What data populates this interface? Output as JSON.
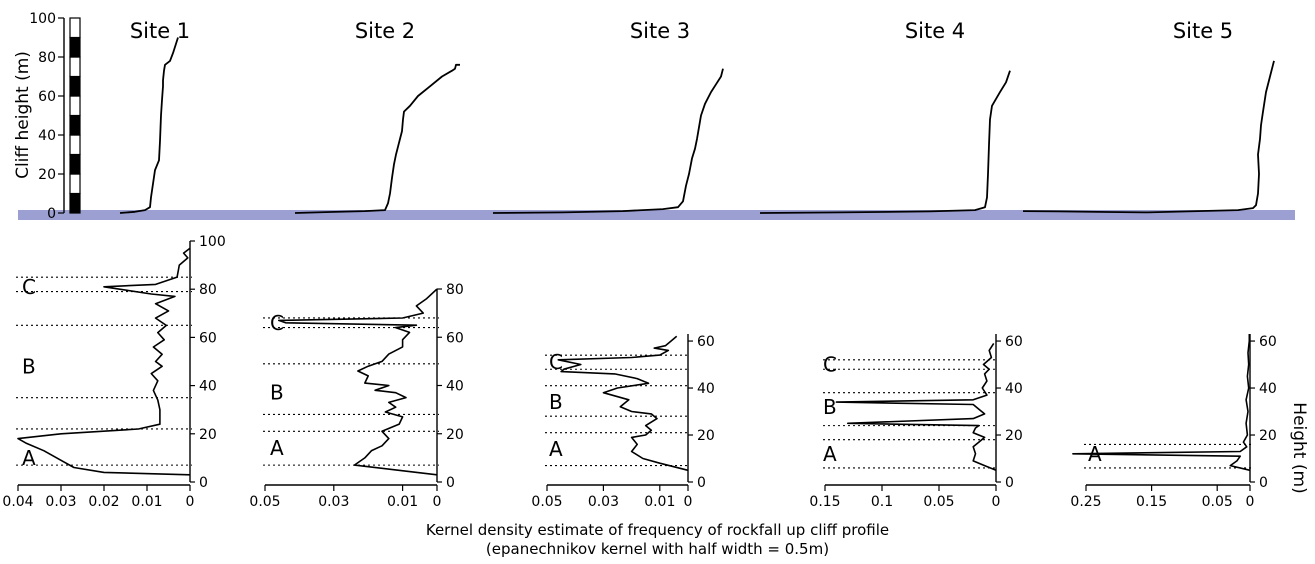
{
  "chart_data": {
    "type": "line",
    "profile_axis": {
      "label": "Cliff height (m)",
      "ticks": [
        0,
        20,
        40,
        60,
        80,
        100
      ],
      "ylim": [
        0,
        100
      ]
    },
    "ground_color": "#9c9fd2",
    "scale_bar": {
      "segments_m": 10,
      "colors": [
        "#000000",
        "#ffffff"
      ]
    },
    "density_height_axis_label": "Height (m)",
    "caption_line1": "Kernel density estimate of frequency of rockfall up cliff profile",
    "caption_line2": "(epanechnikov kernel with half width = 0.5m)",
    "sites": [
      {
        "name": "Site 1",
        "profile": [
          [
            -30,
            0
          ],
          [
            -15,
            0.6
          ],
          [
            -5,
            1.5
          ],
          [
            0,
            3
          ],
          [
            1,
            8
          ],
          [
            3,
            15
          ],
          [
            5,
            22
          ],
          [
            9,
            27
          ],
          [
            10,
            37
          ],
          [
            11,
            50
          ],
          [
            12,
            58
          ],
          [
            13,
            65
          ],
          [
            13,
            68
          ],
          [
            14,
            73
          ],
          [
            15,
            76
          ],
          [
            20,
            78
          ],
          [
            23,
            82
          ],
          [
            28,
            90
          ]
        ],
        "density": {
          "height_ticks": [
            0,
            20,
            40,
            60,
            80,
            100
          ],
          "ylim": [
            0,
            100
          ],
          "x_ticks": [
            0.04,
            0.03,
            0.02,
            0.01,
            0
          ],
          "xlim": [
            0.04,
            0
          ],
          "curve": [
            [
              0,
              3
            ],
            [
              0.02,
              4
            ],
            [
              0.027,
              6
            ],
            [
              0.03,
              9
            ],
            [
              0.034,
              13
            ],
            [
              0.038,
              16
            ],
            [
              0.04,
              18
            ],
            [
              0.03,
              20
            ],
            [
              0.012,
              22
            ],
            [
              0.007,
              24
            ],
            [
              0.007,
              26
            ],
            [
              0.007,
              30
            ],
            [
              0.0075,
              34
            ],
            [
              0.0085,
              38
            ],
            [
              0.0075,
              42
            ],
            [
              0.009,
              45
            ],
            [
              0.0065,
              48
            ],
            [
              0.008,
              50
            ],
            [
              0.0065,
              53
            ],
            [
              0.0085,
              56
            ],
            [
              0.006,
              59
            ],
            [
              0.0075,
              62
            ],
            [
              0.0055,
              65
            ],
            [
              0.008,
              68
            ],
            [
              0.005,
              71
            ],
            [
              0.008,
              74
            ],
            [
              0.0035,
              77
            ],
            [
              0.009,
              78
            ],
            [
              0.02,
              81
            ],
            [
              0.008,
              82
            ],
            [
              0.003,
              85
            ],
            [
              0.0025,
              90
            ],
            [
              0.0005,
              93
            ],
            [
              0.0015,
              95
            ],
            [
              0,
              97
            ]
          ],
          "lines": [
            7,
            22,
            35,
            65,
            79,
            85
          ],
          "zones": [
            {
              "label": "A",
              "h": 10
            },
            {
              "label": "B",
              "h": 48
            },
            {
              "label": "C",
              "h": 81
            }
          ]
        }
      },
      {
        "name": "Site 2",
        "profile": [
          [
            -95,
            0
          ],
          [
            -60,
            0.5
          ],
          [
            -25,
            1
          ],
          [
            -5,
            1.5
          ],
          [
            -2,
            5
          ],
          [
            0,
            10
          ],
          [
            2,
            18
          ],
          [
            4,
            25
          ],
          [
            6,
            30
          ],
          [
            8,
            34
          ],
          [
            10,
            38
          ],
          [
            12,
            42
          ],
          [
            13,
            48
          ],
          [
            14,
            52
          ],
          [
            20,
            55
          ],
          [
            28,
            60
          ],
          [
            40,
            65
          ],
          [
            52,
            70
          ],
          [
            62,
            73
          ],
          [
            65,
            74
          ],
          [
            66,
            76
          ],
          [
            70,
            76
          ]
        ],
        "density": {
          "height_ticks": [
            0,
            20,
            40,
            60,
            80
          ],
          "ylim": [
            0,
            80
          ],
          "x_ticks": [
            0.05,
            0.03,
            0.01,
            0
          ],
          "xlim": [
            0.05,
            0
          ],
          "curve": [
            [
              0,
              3
            ],
            [
              0.012,
              5
            ],
            [
              0.024,
              7
            ],
            [
              0.021,
              10
            ],
            [
              0.019,
              13
            ],
            [
              0.016,
              15
            ],
            [
              0.014,
              18
            ],
            [
              0.016,
              21
            ],
            [
              0.011,
              24
            ],
            [
              0.01,
              27
            ],
            [
              0.015,
              29
            ],
            [
              0.012,
              31
            ],
            [
              0.014,
              33
            ],
            [
              0.009,
              35
            ],
            [
              0.012,
              37
            ],
            [
              0.018,
              38
            ],
            [
              0.014,
              40
            ],
            [
              0.021,
              41
            ],
            [
              0.02,
              44
            ],
            [
              0.023,
              46
            ],
            [
              0.02,
              48
            ],
            [
              0.016,
              50
            ],
            [
              0.014,
              53
            ],
            [
              0.01,
              56
            ],
            [
              0.01,
              59
            ],
            [
              0.008,
              62
            ],
            [
              0.012,
              64
            ],
            [
              0.006,
              65
            ],
            [
              0.044,
              66
            ],
            [
              0.046,
              67
            ],
            [
              0.01,
              68
            ],
            [
              0.004,
              70
            ],
            [
              0.006,
              73
            ],
            [
              0.003,
              76
            ],
            [
              0,
              80
            ]
          ],
          "lines": [
            7,
            21,
            28,
            49,
            64,
            68
          ],
          "zones": [
            {
              "label": "A",
              "h": 14
            },
            {
              "label": "B",
              "h": 37
            },
            {
              "label": "C",
              "h": 66
            }
          ]
        }
      },
      {
        "name": "Site 3",
        "profile": [
          [
            -190,
            0
          ],
          [
            -120,
            0.3
          ],
          [
            -60,
            1
          ],
          [
            -20,
            2
          ],
          [
            -5,
            3
          ],
          [
            0,
            6
          ],
          [
            3,
            14
          ],
          [
            6,
            20
          ],
          [
            9,
            28
          ],
          [
            12,
            33
          ],
          [
            14,
            38
          ],
          [
            16,
            44
          ],
          [
            18,
            50
          ],
          [
            22,
            56
          ],
          [
            28,
            62
          ],
          [
            33,
            66
          ],
          [
            38,
            70
          ],
          [
            40,
            74
          ]
        ],
        "density": {
          "height_ticks": [
            0,
            20,
            40,
            60
          ],
          "ylim": [
            0,
            63
          ],
          "x_ticks": [
            0.05,
            0.03,
            0.01,
            0
          ],
          "xlim": [
            0.05,
            0
          ],
          "curve": [
            [
              0,
              5
            ],
            [
              0.01,
              8
            ],
            [
              0.016,
              10
            ],
            [
              0.02,
              13
            ],
            [
              0.018,
              16
            ],
            [
              0.02,
              19
            ],
            [
              0.015,
              20
            ],
            [
              0.013,
              22
            ],
            [
              0.015,
              24
            ],
            [
              0.011,
              27
            ],
            [
              0.013,
              29
            ],
            [
              0.02,
              30
            ],
            [
              0.024,
              32
            ],
            [
              0.021,
              35
            ],
            [
              0.03,
              38
            ],
            [
              0.025,
              40
            ],
            [
              0.014,
              42
            ],
            [
              0.018,
              44
            ],
            [
              0.026,
              46
            ],
            [
              0.045,
              47
            ],
            [
              0.044,
              48
            ],
            [
              0.038,
              50
            ],
            [
              0.046,
              52
            ],
            [
              0.02,
              53
            ],
            [
              0.01,
              54
            ],
            [
              0.007,
              56
            ],
            [
              0.012,
              57
            ],
            [
              0.008,
              58
            ],
            [
              0.006,
              60
            ],
            [
              0.004,
              62
            ]
          ],
          "lines": [
            7,
            21,
            28,
            41,
            48,
            54
          ],
          "zones": [
            {
              "label": "A",
              "h": 14
            },
            {
              "label": "B",
              "h": 34
            },
            {
              "label": "C",
              "h": 51
            }
          ]
        }
      },
      {
        "name": "Site 4",
        "profile": [
          [
            -230,
            0
          ],
          [
            -150,
            0.3
          ],
          [
            -60,
            0.8
          ],
          [
            -15,
            1.5
          ],
          [
            -5,
            3
          ],
          [
            -3,
            8
          ],
          [
            -2,
            20
          ],
          [
            -1,
            35
          ],
          [
            0,
            48
          ],
          [
            2,
            55
          ],
          [
            10,
            62
          ],
          [
            16,
            67
          ],
          [
            20,
            73
          ]
        ],
        "density": {
          "height_ticks": [
            0,
            20,
            40,
            60
          ],
          "ylim": [
            0,
            63
          ],
          "x_ticks": [
            0.15,
            0.1,
            0.05,
            0
          ],
          "xlim": [
            0.15,
            0
          ],
          "curve": [
            [
              0,
              5
            ],
            [
              0.01,
              7
            ],
            [
              0.02,
              9
            ],
            [
              0.018,
              12
            ],
            [
              0.02,
              15
            ],
            [
              0.015,
              17
            ],
            [
              0.01,
              19
            ],
            [
              0.02,
              21
            ],
            [
              0.018,
              23
            ],
            [
              0.015,
              24
            ],
            [
              0.13,
              25
            ],
            [
              0.02,
              27
            ],
            [
              0.01,
              29
            ],
            [
              0.015,
              31
            ],
            [
              0.02,
              33
            ],
            [
              0.14,
              34
            ],
            [
              0.02,
              35
            ],
            [
              0.008,
              37
            ],
            [
              0.012,
              40
            ],
            [
              0.008,
              43
            ],
            [
              0.01,
              46
            ],
            [
              0.006,
              48
            ],
            [
              0.011,
              50
            ],
            [
              0.004,
              53
            ],
            [
              0.006,
              56
            ],
            [
              0.002,
              59
            ]
          ],
          "lines": [
            6,
            18,
            24,
            38,
            48,
            52
          ],
          "zones": [
            {
              "label": "A",
              "h": 12
            },
            {
              "label": "B",
              "h": 32
            },
            {
              "label": "C",
              "h": 50
            }
          ]
        }
      },
      {
        "name": "Site 5",
        "profile": [
          [
            -235,
            1
          ],
          [
            -200,
            0.8
          ],
          [
            -150,
            0.5
          ],
          [
            -110,
            0.3
          ],
          [
            -60,
            1
          ],
          [
            -20,
            1.5
          ],
          [
            -5,
            2.5
          ],
          [
            -2,
            4
          ],
          [
            0,
            10
          ],
          [
            1,
            20
          ],
          [
            0,
            30
          ],
          [
            2,
            38
          ],
          [
            3,
            45
          ],
          [
            5,
            52
          ],
          [
            8,
            62
          ],
          [
            12,
            70
          ],
          [
            15,
            76
          ],
          [
            16,
            78
          ]
        ],
        "density": {
          "height_ticks": [
            0,
            20,
            40,
            60
          ],
          "ylim": [
            0,
            63
          ],
          "x_ticks": [
            0.25,
            0.15,
            0.05,
            0
          ],
          "xlim": [
            0.25,
            0
          ],
          "curve": [
            [
              0,
              5
            ],
            [
              0.03,
              7
            ],
            [
              0.02,
              9
            ],
            [
              0.015,
              11
            ],
            [
              0.27,
              12
            ],
            [
              0.015,
              13
            ],
            [
              0.005,
              15
            ],
            [
              0.01,
              17
            ],
            [
              0.004,
              20
            ],
            [
              0.006,
              25
            ],
            [
              0.003,
              30
            ],
            [
              0.006,
              35
            ],
            [
              0.002,
              40
            ],
            [
              0.004,
              45
            ],
            [
              0.002,
              50
            ],
            [
              0.003,
              55
            ],
            [
              0.001,
              60
            ],
            [
              0.001,
              63
            ]
          ],
          "lines": [
            6,
            16
          ],
          "zones": [
            {
              "label": "A",
              "h": 12
            }
          ]
        }
      }
    ]
  }
}
